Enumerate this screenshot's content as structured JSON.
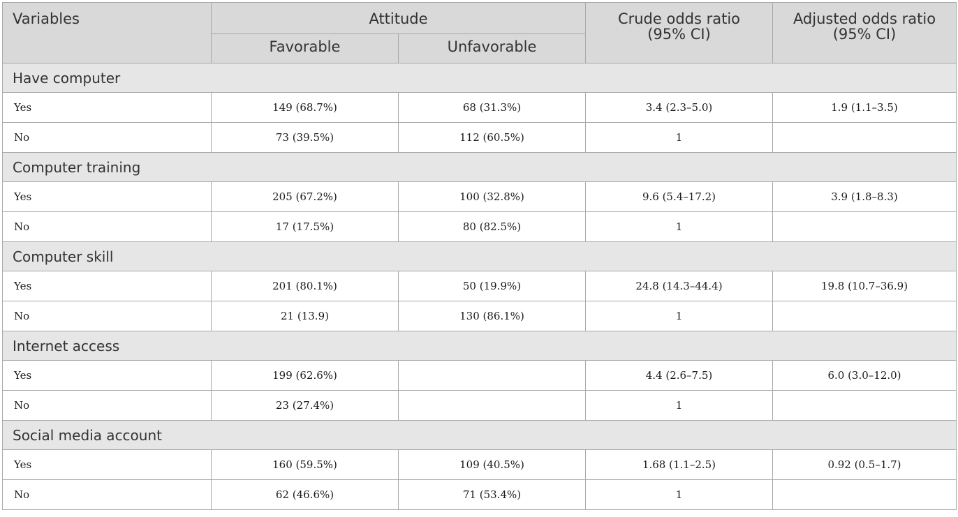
{
  "header": {
    "variables": "Variables",
    "attitude": "Attitude",
    "favorable": "Favorable",
    "unfavorable": "Unfavorable",
    "crude_line1": "Crude odds ratio",
    "crude_line2": "(95% CI)",
    "adjusted_line1": "Adjusted odds ratio",
    "adjusted_line2": "(95% CI)"
  },
  "groups": [
    {
      "title": "Have computer",
      "rows": [
        {
          "label": "Yes",
          "favorable": "149 (68.7%)",
          "unfavorable": "68 (31.3%)",
          "crude": "3.4 (2.3–5.0)",
          "adjusted": "1.9 (1.1–3.5)"
        },
        {
          "label": "No",
          "favorable": "73 (39.5%)",
          "unfavorable": "112 (60.5%)",
          "crude": "1",
          "adjusted": ""
        }
      ]
    },
    {
      "title": "Computer training",
      "rows": [
        {
          "label": "Yes",
          "favorable": "205 (67.2%)",
          "unfavorable": "100 (32.8%)",
          "crude": "9.6 (5.4–17.2)",
          "adjusted": "3.9 (1.8–8.3)"
        },
        {
          "label": "No",
          "favorable": "17 (17.5%)",
          "unfavorable": "80 (82.5%)",
          "crude": "1",
          "adjusted": ""
        }
      ]
    },
    {
      "title": "Computer skill",
      "rows": [
        {
          "label": "Yes",
          "favorable": "201 (80.1%)",
          "unfavorable": "50 (19.9%)",
          "crude": "24.8 (14.3–44.4)",
          "adjusted": "19.8 (10.7–36.9)"
        },
        {
          "label": "No",
          "favorable": "21 (13.9)",
          "unfavorable": "130 (86.1%)",
          "crude": "1",
          "adjusted": ""
        }
      ]
    },
    {
      "title": "Internet access",
      "rows": [
        {
          "label": "Yes",
          "favorable": "199 (62.6%)",
          "unfavorable": "",
          "crude": "4.4 (2.6–7.5)",
          "adjusted": "6.0 (3.0–12.0)"
        },
        {
          "label": "No",
          "favorable": "23 (27.4%)",
          "unfavorable": "",
          "crude": "1",
          "adjusted": ""
        }
      ]
    },
    {
      "title": "Social media account",
      "rows": [
        {
          "label": "Yes",
          "favorable": "160 (59.5%)",
          "unfavorable": "109 (40.5%)",
          "crude": "1.68 (1.1–2.5)",
          "adjusted": "0.92 (0.5–1.7)"
        },
        {
          "label": "No",
          "favorable": "62 (46.6%)",
          "unfavorable": "71 (53.4%)",
          "crude": "1",
          "adjusted": ""
        }
      ]
    }
  ]
}
